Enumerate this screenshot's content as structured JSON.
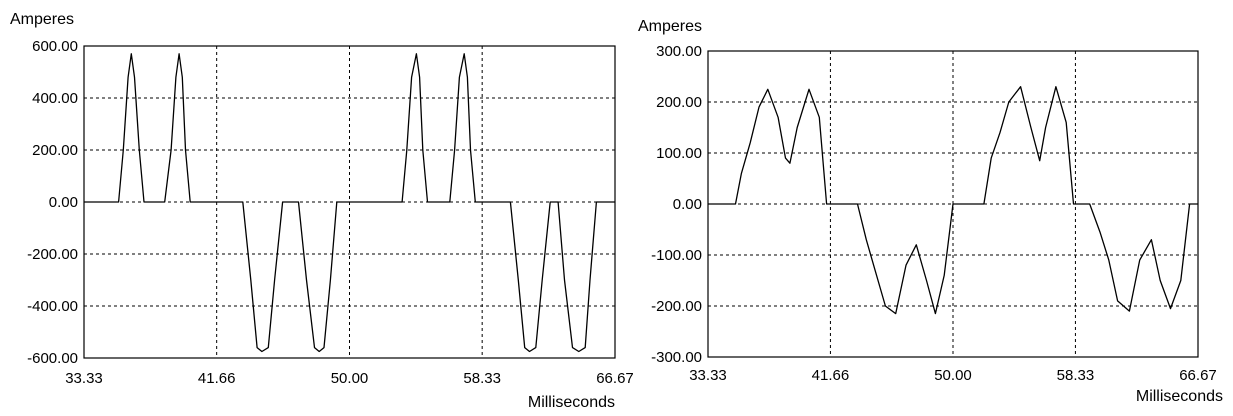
{
  "colors": {
    "background": "#ffffff",
    "line": "#000000",
    "grid": "#000000"
  },
  "chart_data": [
    {
      "type": "line",
      "ylabel": "Amperes",
      "xlabel": "Milliseconds",
      "xlim": [
        33.33,
        66.67
      ],
      "ylim": [
        -600,
        600
      ],
      "grid": true,
      "grid_style": "dotted",
      "x_ticks": [
        33.33,
        41.66,
        50.0,
        58.33,
        66.67
      ],
      "x_tick_labels": [
        "33.33",
        "41.66",
        "50.00",
        "58.33",
        "66.67"
      ],
      "y_ticks": [
        600,
        400,
        200,
        0,
        -200,
        -400,
        -600
      ],
      "y_tick_labels": [
        "600.00",
        "400.00",
        "200.00",
        "0.00",
        "-200.00",
        "-400.00",
        "-600.00"
      ],
      "series": [
        {
          "x": [
            33.33,
            35.5,
            35.8,
            36.1,
            36.3,
            36.5,
            36.8,
            37.1,
            37.4,
            38.4,
            38.8,
            39.1,
            39.3,
            39.5,
            39.7,
            40.0,
            40.3,
            41.66,
            42.9,
            43.3,
            43.8,
            44.2,
            44.5,
            44.9,
            45.3,
            45.8,
            46.4,
            46.8,
            47.3,
            47.8,
            48.1,
            48.4,
            48.8,
            49.2,
            50.0,
            53.3,
            53.6,
            53.9,
            54.2,
            54.4,
            54.6,
            54.9,
            55.3,
            56.3,
            56.6,
            56.9,
            57.2,
            57.4,
            57.6,
            57.9,
            58.2,
            58.33,
            59.7,
            60.1,
            60.6,
            61.0,
            61.3,
            61.7,
            62.1,
            62.6,
            63.1,
            63.5,
            64.0,
            64.4,
            64.8,
            65.1,
            65.5,
            65.9,
            66.67
          ],
          "y": [
            0,
            0,
            200,
            480,
            570,
            480,
            200,
            0,
            0,
            0,
            200,
            480,
            570,
            480,
            200,
            0,
            0,
            0,
            0,
            0,
            -300,
            -560,
            -575,
            -560,
            -300,
            0,
            0,
            0,
            -300,
            -560,
            -575,
            -560,
            -300,
            0,
            0,
            0,
            200,
            480,
            570,
            480,
            200,
            0,
            0,
            0,
            200,
            480,
            570,
            480,
            200,
            0,
            0,
            0,
            0,
            0,
            -300,
            -560,
            -575,
            -560,
            -300,
            0,
            0,
            -300,
            -560,
            -575,
            -560,
            -300,
            0,
            0,
            0
          ]
        }
      ]
    },
    {
      "type": "line",
      "ylabel": "Amperes",
      "xlabel": "Milliseconds",
      "xlim": [
        33.33,
        66.67
      ],
      "ylim": [
        -300,
        300
      ],
      "grid": true,
      "grid_style": "dotted",
      "x_ticks": [
        33.33,
        41.66,
        50.0,
        58.33,
        66.67
      ],
      "x_tick_labels": [
        "33.33",
        "41.66",
        "50.00",
        "58.33",
        "66.67"
      ],
      "y_ticks": [
        300,
        200,
        100,
        0,
        -100,
        -200,
        -300
      ],
      "y_tick_labels": [
        "300.00",
        "200.00",
        "100.00",
        "0.00",
        "-100.00",
        "-200.00",
        "-300.00"
      ],
      "series": [
        {
          "x": [
            33.33,
            35.2,
            35.6,
            36.2,
            36.8,
            37.4,
            38.1,
            38.6,
            38.9,
            39.4,
            40.2,
            40.9,
            41.4,
            41.66,
            43.5,
            44.1,
            44.7,
            45.4,
            46.1,
            46.8,
            47.5,
            48.2,
            48.8,
            49.4,
            50.0,
            50.4,
            52.1,
            52.6,
            53.2,
            53.8,
            54.6,
            55.3,
            55.9,
            56.3,
            57.0,
            57.7,
            58.2,
            58.33,
            59.3,
            60.0,
            60.6,
            61.2,
            62.0,
            62.7,
            63.5,
            64.1,
            64.8,
            65.5,
            66.1,
            66.67
          ],
          "y": [
            0,
            0,
            60,
            120,
            190,
            225,
            170,
            90,
            80,
            150,
            225,
            170,
            0,
            0,
            0,
            -70,
            -130,
            -200,
            -215,
            -120,
            -80,
            -150,
            -215,
            -140,
            0,
            0,
            0,
            90,
            140,
            200,
            230,
            150,
            85,
            150,
            230,
            160,
            0,
            0,
            0,
            -55,
            -110,
            -190,
            -210,
            -110,
            -70,
            -150,
            -205,
            -150,
            0,
            0
          ]
        }
      ]
    }
  ]
}
